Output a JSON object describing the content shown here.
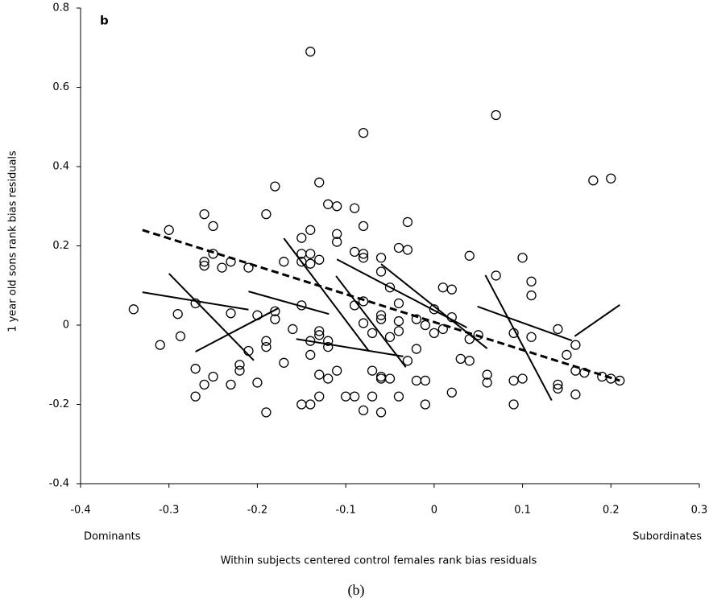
{
  "chart_data": {
    "type": "scatter",
    "panel_label": "b",
    "ylabel": "1 year old sons rank bias residuals",
    "xlabel": "Within subjects centered control females rank bias residuals",
    "x_end_labels": [
      "Dominants",
      "Subordinates"
    ],
    "xlim": [
      -0.4,
      0.3
    ],
    "xticks": [
      -0.4,
      -0.3,
      -0.2,
      -0.1,
      0,
      0.1,
      0.2,
      0.3
    ],
    "ylim": [
      -0.4,
      0.8
    ],
    "yticks": [
      -0.4,
      -0.2,
      0,
      0.2,
      0.4,
      0.6,
      0.8
    ],
    "marker_color": "#000000",
    "points": {
      "x": [
        -0.34,
        -0.31,
        -0.3,
        -0.29,
        -0.287,
        -0.27,
        -0.27,
        -0.27,
        -0.26,
        -0.26,
        -0.26,
        -0.26,
        -0.25,
        -0.25,
        -0.25,
        -0.24,
        -0.23,
        -0.23,
        -0.23,
        -0.22,
        -0.22,
        -0.21,
        -0.21,
        -0.2,
        -0.2,
        -0.19,
        -0.19,
        -0.19,
        -0.19,
        -0.18,
        -0.18,
        -0.18,
        -0.17,
        -0.17,
        -0.16,
        -0.15,
        -0.15,
        -0.15,
        -0.15,
        -0.15,
        -0.14,
        -0.14,
        -0.14,
        -0.14,
        -0.14,
        -0.14,
        -0.14,
        -0.13,
        -0.13,
        -0.13,
        -0.13,
        -0.13,
        -0.13,
        -0.12,
        -0.12,
        -0.12,
        -0.12,
        -0.11,
        -0.11,
        -0.11,
        -0.11,
        -0.1,
        -0.09,
        -0.09,
        -0.09,
        -0.09,
        -0.08,
        -0.08,
        -0.08,
        -0.08,
        -0.08,
        -0.08,
        -0.08,
        -0.07,
        -0.07,
        -0.07,
        -0.06,
        -0.06,
        -0.06,
        -0.06,
        -0.06,
        -0.06,
        -0.06,
        -0.05,
        -0.05,
        -0.05,
        -0.04,
        -0.04,
        -0.04,
        -0.04,
        -0.04,
        -0.03,
        -0.03,
        -0.03,
        -0.02,
        -0.02,
        -0.02,
        -0.01,
        -0.01,
        -0.01,
        0,
        0,
        0.01,
        0.01,
        0.02,
        0.02,
        0.02,
        0.03,
        0.04,
        0.04,
        0.04,
        0.05,
        0.06,
        0.06,
        0.07,
        0.07,
        0.09,
        0.09,
        0.09,
        0.1,
        0.1,
        0.11,
        0.11,
        0.11,
        0.14,
        0.14,
        0.14,
        0.15,
        0.16,
        0.16,
        0.16,
        0.17,
        0.18,
        0.19,
        0.2,
        0.2,
        0.21
      ],
      "y": [
        0.04,
        -0.05,
        0.24,
        0.028,
        -0.028,
        0.055,
        -0.11,
        -0.18,
        0.28,
        0.16,
        0.15,
        -0.15,
        0.25,
        0.18,
        -0.13,
        0.145,
        0.16,
        0.03,
        -0.15,
        -0.1,
        -0.115,
        0.145,
        -0.065,
        0.025,
        -0.145,
        0.28,
        -0.04,
        -0.055,
        -0.22,
        0.35,
        0.035,
        0.015,
        -0.095,
        0.16,
        -0.01,
        0.22,
        0.18,
        0.16,
        0.05,
        -0.2,
        0.69,
        0.24,
        0.18,
        0.155,
        -0.04,
        -0.075,
        -0.2,
        0.36,
        0.165,
        -0.015,
        -0.025,
        -0.125,
        -0.18,
        0.305,
        -0.04,
        -0.055,
        -0.135,
        0.3,
        0.23,
        0.21,
        -0.115,
        -0.18,
        0.295,
        0.185,
        0.05,
        -0.18,
        0.485,
        0.25,
        0.18,
        0.17,
        0.06,
        0.005,
        -0.215,
        -0.02,
        -0.115,
        -0.18,
        0.17,
        0.135,
        0.025,
        0.015,
        -0.13,
        -0.135,
        -0.22,
        0.095,
        -0.03,
        -0.135,
        0.195,
        0.055,
        0.01,
        -0.015,
        -0.18,
        0.26,
        0.19,
        -0.09,
        0.015,
        -0.06,
        -0.14,
        0,
        -0.14,
        -0.2,
        0.04,
        -0.02,
        0.095,
        -0.01,
        0.09,
        0.02,
        -0.17,
        -0.085,
        0.175,
        -0.035,
        -0.09,
        -0.025,
        -0.125,
        -0.145,
        0.53,
        0.125,
        -0.02,
        -0.14,
        -0.2,
        0.17,
        -0.135,
        0.11,
        0.075,
        -0.03,
        -0.01,
        -0.15,
        -0.16,
        -0.075,
        -0.05,
        -0.115,
        -0.175,
        -0.12,
        0.365,
        -0.13,
        0.37,
        -0.135,
        -0.14
      ]
    },
    "fit_lines": [
      {
        "style": "dashed",
        "x": [
          -0.33,
          0.21
        ],
        "y": [
          0.24,
          -0.14
        ]
      },
      {
        "style": "solid",
        "x": [
          -0.33,
          -0.21
        ],
        "y": [
          0.083,
          0.039
        ]
      },
      {
        "style": "solid",
        "x": [
          -0.3,
          -0.204
        ],
        "y": [
          0.13,
          -0.089
        ]
      },
      {
        "style": "solid",
        "x": [
          -0.27,
          -0.176
        ],
        "y": [
          -0.067,
          0.043
        ]
      },
      {
        "style": "solid",
        "x": [
          -0.21,
          -0.119
        ],
        "y": [
          0.085,
          0.028
        ]
      },
      {
        "style": "solid",
        "x": [
          -0.17,
          -0.074
        ],
        "y": [
          0.219,
          -0.065
        ]
      },
      {
        "style": "solid",
        "x": [
          -0.156,
          -0.035
        ],
        "y": [
          -0.035,
          -0.079
        ]
      },
      {
        "style": "solid",
        "x": [
          -0.111,
          -0.032
        ],
        "y": [
          0.124,
          -0.106
        ]
      },
      {
        "style": "solid",
        "x": [
          -0.11,
          0.037
        ],
        "y": [
          0.166,
          -0.006
        ]
      },
      {
        "style": "solid",
        "x": [
          -0.06,
          0.06
        ],
        "y": [
          0.154,
          -0.059
        ]
      },
      {
        "style": "solid",
        "x": [
          0.049,
          0.156
        ],
        "y": [
          0.047,
          -0.039
        ]
      },
      {
        "style": "solid",
        "x": [
          0.058,
          0.133
        ],
        "y": [
          0.126,
          -0.19
        ]
      },
      {
        "style": "solid",
        "x": [
          0.159,
          0.21
        ],
        "y": [
          -0.028,
          0.051
        ]
      }
    ]
  },
  "caption": "(b)"
}
